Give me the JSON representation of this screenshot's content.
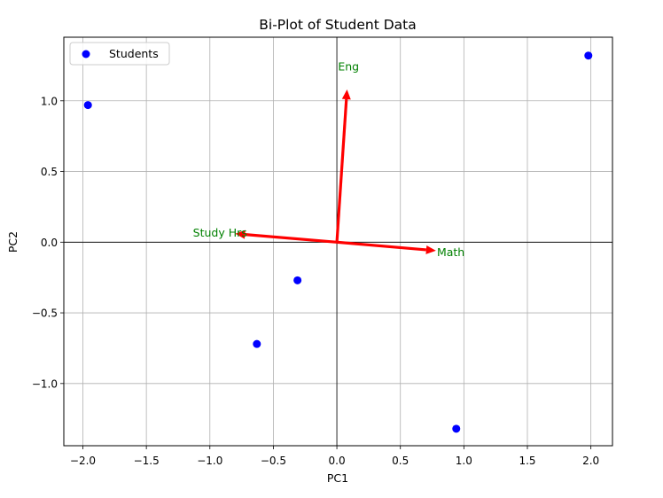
{
  "chart_data": {
    "type": "scatter",
    "title": "Bi-Plot of Student Data",
    "xlabel": "PC1",
    "ylabel": "PC2",
    "xlim": [
      -2.15,
      2.17
    ],
    "ylim": [
      -1.44,
      1.45
    ],
    "xticks": [
      -2.0,
      -1.5,
      -1.0,
      -0.5,
      0.0,
      0.5,
      1.0,
      1.5,
      2.0
    ],
    "yticks": [
      -1.0,
      -0.5,
      0.0,
      0.5,
      1.0
    ],
    "xtick_labels": [
      "−2.0",
      "−1.5",
      "−1.0",
      "−0.5",
      "0.0",
      "0.5",
      "1.0",
      "1.5",
      "2.0"
    ],
    "ytick_labels": [
      "−1.0",
      "−0.5",
      "0.0",
      "0.5",
      "1.0"
    ],
    "grid": true,
    "legend": {
      "placement": "top-left",
      "entries": [
        "Students"
      ]
    },
    "series": [
      {
        "name": "Students",
        "color": "#0000ff",
        "points": [
          {
            "x": -1.96,
            "y": 0.97
          },
          {
            "x": -0.31,
            "y": -0.27
          },
          {
            "x": -0.63,
            "y": -0.72
          },
          {
            "x": 0.94,
            "y": -1.32
          },
          {
            "x": 1.98,
            "y": 1.32
          }
        ]
      }
    ],
    "loadings": [
      {
        "label": "Math",
        "x": 0.78,
        "y": -0.06
      },
      {
        "label": "Eng",
        "x": 0.08,
        "y": 1.08
      },
      {
        "label": "Study Hrs",
        "x": -0.8,
        "y": 0.06
      }
    ],
    "arrow_color": "#ff0000",
    "loading_label_color": "#008000",
    "reference_lines": {
      "x": 0,
      "y": 0,
      "color": "#000000"
    }
  }
}
